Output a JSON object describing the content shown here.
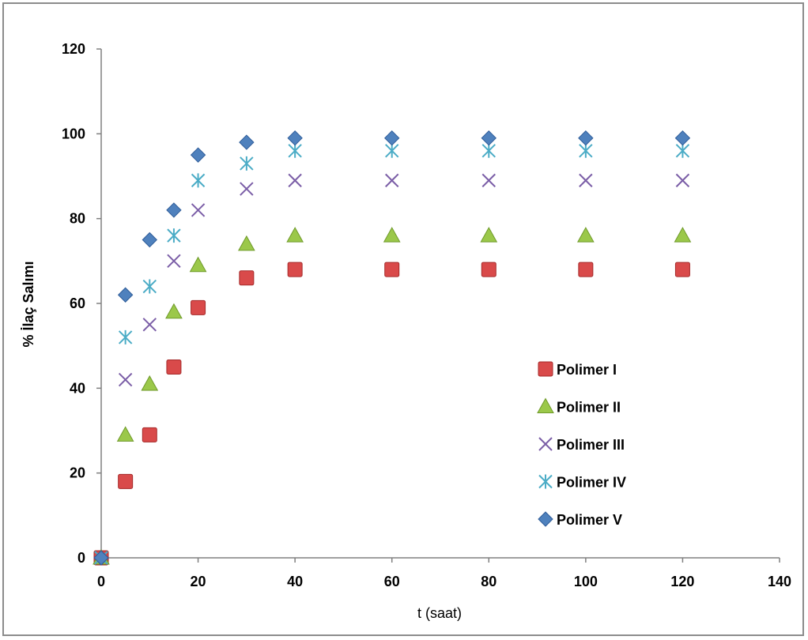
{
  "chart_data": {
    "type": "scatter",
    "xlabel": "t (saat)",
    "ylabel": "% İlaç Salımı",
    "xlim": [
      0,
      140
    ],
    "ylim": [
      0,
      120
    ],
    "x_ticks": [
      0,
      20,
      40,
      60,
      80,
      100,
      120,
      140
    ],
    "y_ticks": [
      0,
      20,
      40,
      60,
      80,
      100,
      120
    ],
    "grid": false,
    "legend_position": "right",
    "x": [
      0,
      5,
      10,
      15,
      20,
      30,
      40,
      60,
      80,
      100,
      120
    ],
    "series": [
      {
        "name": "Polimer I",
        "marker": "square",
        "color": "#d94a4a",
        "values": [
          0,
          18,
          29,
          45,
          59,
          66,
          68,
          68,
          68,
          68,
          68
        ]
      },
      {
        "name": "Polimer II",
        "marker": "triangle",
        "color": "#9bc84a",
        "values": [
          0,
          29,
          41,
          58,
          69,
          74,
          76,
          76,
          76,
          76,
          76
        ]
      },
      {
        "name": "Polimer III",
        "marker": "x",
        "color": "#7b5ea7",
        "values": [
          0,
          42,
          55,
          70,
          82,
          87,
          89,
          89,
          89,
          89,
          89
        ]
      },
      {
        "name": "Polimer IV",
        "marker": "star",
        "color": "#4bacc6",
        "values": [
          0,
          52,
          64,
          76,
          89,
          93,
          96,
          96,
          96,
          96,
          96
        ]
      },
      {
        "name": "Polimer V",
        "marker": "diamond",
        "color": "#4f81bd",
        "values": [
          0,
          62,
          75,
          82,
          95,
          98,
          99,
          99,
          99,
          99,
          99
        ]
      }
    ]
  }
}
